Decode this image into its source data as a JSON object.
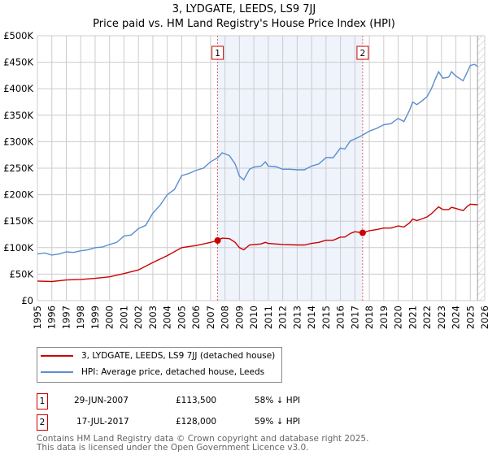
{
  "title": {
    "line1": "3, LYDGATE, LEEDS, LS9 7JJ",
    "line2": "Price paid vs. HM Land Registry's House Price Index (HPI)"
  },
  "chart_data": {
    "type": "line",
    "title": "Price paid vs. HM Land Registry's House Price Index (HPI)",
    "xlim": [
      1995,
      2026
    ],
    "ylim": [
      0,
      500000
    ],
    "grid": true,
    "x_ticks": [
      "1995",
      "1996",
      "1997",
      "1998",
      "1999",
      "2000",
      "2001",
      "2002",
      "2003",
      "2004",
      "2005",
      "2006",
      "2007",
      "2008",
      "2009",
      "2010",
      "2011",
      "2012",
      "2013",
      "2014",
      "2015",
      "2016",
      "2017",
      "2018",
      "2019",
      "2020",
      "2021",
      "2022",
      "2023",
      "2024",
      "2025",
      "2026"
    ],
    "y_ticks": [
      {
        "v": 0,
        "label": "£0"
      },
      {
        "v": 50000,
        "label": "£50K"
      },
      {
        "v": 100000,
        "label": "£100K"
      },
      {
        "v": 150000,
        "label": "£150K"
      },
      {
        "v": 200000,
        "label": "£200K"
      },
      {
        "v": 250000,
        "label": "£250K"
      },
      {
        "v": 300000,
        "label": "£300K"
      },
      {
        "v": 350000,
        "label": "£350K"
      },
      {
        "v": 400000,
        "label": "£400K"
      },
      {
        "v": 450000,
        "label": "£450K"
      },
      {
        "v": 500000,
        "label": "£500K"
      }
    ],
    "shaded_range": [
      2007.49,
      2017.54
    ],
    "hatched_from": 2025.5,
    "series": [
      {
        "name": "3, LYDGATE, LEEDS, LS9 7JJ (detached house)",
        "color": "#cc0000",
        "x": [
          1995,
          1996,
          1997,
          1998,
          1999,
          2000,
          2001,
          2002,
          2003,
          2004,
          2005,
          2006,
          2007,
          2007.49,
          2007.8,
          2008.3,
          2008.7,
          2009,
          2009.3,
          2009.7,
          2010.5,
          2010.8,
          2011,
          2012,
          2013,
          2013.5,
          2014,
          2014.5,
          2015,
          2015.5,
          2016,
          2016.3,
          2016.7,
          2017,
          2017.54,
          2018,
          2018.5,
          2019,
          2019.5,
          2020,
          2020.4,
          2020.8,
          2021,
          2021.3,
          2021.6,
          2022,
          2022.3,
          2022.6,
          2022.8,
          2023.1,
          2023.5,
          2023.7,
          2024,
          2024.5,
          2024.8,
          2025,
          2025.5
        ],
        "values": [
          37000,
          36000,
          39000,
          40000,
          42000,
          45000,
          51000,
          58000,
          72000,
          85000,
          100000,
          104000,
          110000,
          113500,
          118000,
          117000,
          110000,
          100000,
          96000,
          105000,
          107000,
          110000,
          108000,
          106000,
          105000,
          105000,
          108000,
          110000,
          114000,
          114000,
          120000,
          120000,
          127000,
          130000,
          128000,
          132000,
          134000,
          137000,
          137000,
          141000,
          139000,
          147000,
          154000,
          151000,
          154000,
          158000,
          164000,
          172000,
          177000,
          172000,
          172000,
          176000,
          174000,
          170000,
          178000,
          182000,
          181000
        ]
      },
      {
        "name": "HPI: Average price, detached house, Leeds",
        "color": "#5b8dd0",
        "x": [
          1995,
          1995.5,
          1996,
          1996.5,
          1997,
          1997.5,
          1998,
          1998.5,
          1999,
          1999.5,
          2000,
          2000.5,
          2001,
          2001.5,
          2002,
          2002.5,
          2003,
          2003.5,
          2004,
          2004.5,
          2005,
          2005.5,
          2006,
          2006.5,
          2007,
          2007.5,
          2007.8,
          2008.3,
          2008.7,
          2009,
          2009.3,
          2009.7,
          2010,
          2010.5,
          2010.8,
          2011,
          2011.5,
          2012,
          2012.5,
          2013,
          2013.5,
          2014,
          2014.5,
          2015,
          2015.5,
          2016,
          2016.3,
          2016.7,
          2017,
          2017.5,
          2018,
          2018.5,
          2019,
          2019.5,
          2020,
          2020.4,
          2020.8,
          2021,
          2021.3,
          2021.6,
          2022,
          2022.3,
          2022.6,
          2022.8,
          2023.1,
          2023.5,
          2023.7,
          2024,
          2024.5,
          2024.8,
          2025,
          2025.3,
          2025.5
        ],
        "values": [
          88000,
          90000,
          86000,
          88000,
          92000,
          91000,
          94000,
          96000,
          100000,
          101000,
          106000,
          110000,
          122000,
          124000,
          136000,
          142000,
          165000,
          180000,
          200000,
          210000,
          236000,
          240000,
          246000,
          250000,
          262000,
          270000,
          279000,
          274000,
          258000,
          235000,
          228000,
          248000,
          252000,
          254000,
          262000,
          254000,
          253000,
          248000,
          248000,
          247000,
          247000,
          254000,
          258000,
          270000,
          270000,
          288000,
          286000,
          302000,
          305000,
          312000,
          320000,
          325000,
          332000,
          334000,
          344000,
          338000,
          360000,
          375000,
          370000,
          376000,
          385000,
          400000,
          420000,
          432000,
          420000,
          422000,
          432000,
          424000,
          415000,
          432000,
          444000,
          446000,
          442000
        ]
      }
    ],
    "markers": [
      {
        "label": "1",
        "x": 2007.49,
        "value": 113500
      },
      {
        "label": "2",
        "x": 2017.54,
        "value": 128000
      }
    ]
  },
  "legend": {
    "items": [
      "3, LYDGATE, LEEDS, LS9 7JJ (detached house)",
      "HPI: Average price, detached house, Leeds"
    ]
  },
  "transactions": [
    {
      "num": "1",
      "date": "29-JUN-2007",
      "price": "£113,500",
      "hpi": "58% ↓ HPI"
    },
    {
      "num": "2",
      "date": "17-JUL-2017",
      "price": "£128,000",
      "hpi": "59% ↓ HPI"
    }
  ],
  "footer": {
    "line1": "Contains HM Land Registry data © Crown copyright and database right 2025.",
    "line2": "This data is licensed under the Open Government Licence v3.0."
  }
}
